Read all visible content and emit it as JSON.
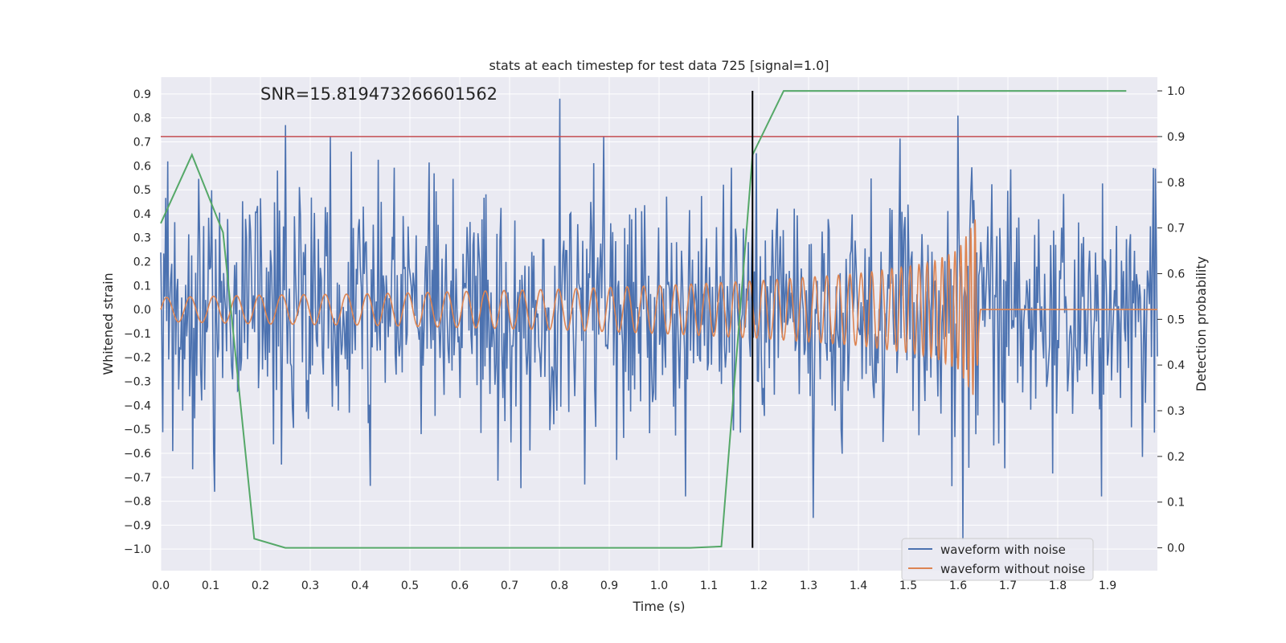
{
  "chart_data": {
    "type": "line",
    "title": "stats at each timestep for test data 725 [signal=1.0]",
    "xlabel": "Time (s)",
    "ylabel": "Whitened strain",
    "y2label": "Detection probability",
    "annotation": "SNR=15.819473266601562",
    "xlim": [
      0.0,
      2.0
    ],
    "ylim": [
      -1.09,
      0.97
    ],
    "y2lim": [
      -0.05,
      1.03
    ],
    "x_ticks": [
      "0.0",
      "0.1",
      "0.2",
      "0.3",
      "0.4",
      "0.5",
      "0.6",
      "0.7",
      "0.8",
      "0.9",
      "1.0",
      "1.1",
      "1.2",
      "1.3",
      "1.4",
      "1.5",
      "1.6",
      "1.7",
      "1.8",
      "1.9"
    ],
    "y_ticks": [
      "0.9",
      "0.8",
      "0.7",
      "0.6",
      "0.5",
      "0.4",
      "0.3",
      "0.2",
      "0.1",
      "0.0",
      "−0.1",
      "−0.2",
      "−0.3",
      "−0.4",
      "−0.5",
      "−0.6",
      "−0.7",
      "−0.8",
      "−0.9",
      "−1.0"
    ],
    "y2_ticks": [
      "1.0",
      "0.9",
      "0.8",
      "0.7",
      "0.6",
      "0.5",
      "0.4",
      "0.3",
      "0.2",
      "0.1",
      "0.0"
    ],
    "grid": true,
    "legend_position": "lower right",
    "colors": {
      "background": "#eaeaf2",
      "grid": "#ffffff",
      "noisy": "#4c72b0",
      "clean": "#dd8452",
      "probability": "#55a868",
      "threshold": "#c44e52",
      "marker": "#000000"
    },
    "series": [
      {
        "name": "waveform with noise",
        "axis": "left",
        "x_range": [
          0.0,
          2.0
        ],
        "approx_points": 1000,
        "noise_std": 0.25,
        "notable_peaks": [
          [
            0.25,
            0.77
          ],
          [
            0.8,
            0.88
          ],
          [
            1.6,
            0.81
          ],
          [
            1.61,
            -0.96
          ],
          [
            1.31,
            -0.87
          ],
          [
            0.85,
            -0.73
          ]
        ]
      },
      {
        "name": "waveform without noise",
        "axis": "left",
        "description_points": {
          "t": [
            0.0,
            0.2,
            0.4,
            0.6,
            0.8,
            1.0,
            1.2,
            1.4,
            1.5,
            1.55,
            1.6,
            1.62,
            1.635,
            1.645,
            1.66,
            2.0
          ],
          "amplitude": [
            0.05,
            0.06,
            0.065,
            0.075,
            0.085,
            0.1,
            0.12,
            0.15,
            0.18,
            0.2,
            0.25,
            0.32,
            0.38,
            0.0,
            0.0,
            0.0
          ],
          "frequency_hz": [
            21,
            22,
            24,
            26,
            28,
            31,
            36,
            45,
            55,
            65,
            85,
            105,
            120,
            0,
            0,
            0
          ]
        }
      },
      {
        "name": "detection probability",
        "axis": "right",
        "x": [
          0.0,
          0.0625,
          0.125,
          0.1875,
          0.25,
          0.5,
          1.0,
          1.0625,
          1.125,
          1.1875,
          1.25,
          1.5,
          1.9375
        ],
        "y": [
          0.71,
          0.86,
          0.69,
          0.02,
          0.0,
          0.0,
          0.0,
          0.0,
          0.003,
          0.86,
          1.0,
          1.0,
          1.0
        ]
      }
    ],
    "threshold_line": {
      "axis": "right",
      "y": 0.9
    },
    "vertical_marker": {
      "x": 1.1875,
      "y2_from": 0.0,
      "y2_to": 1.0
    },
    "legend": [
      "waveform with noise",
      "waveform without noise"
    ]
  }
}
